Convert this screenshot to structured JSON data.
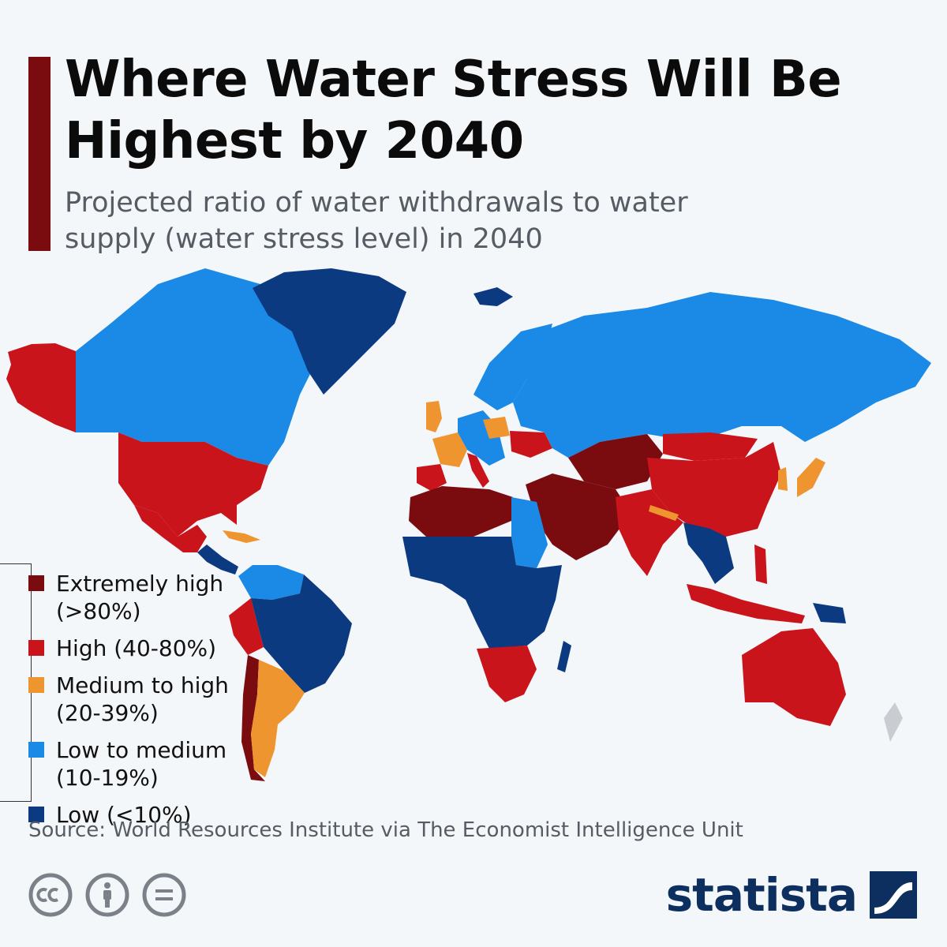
{
  "header": {
    "title": "Where Water Stress Will Be Highest by 2040",
    "subtitle": "Projected ratio of water withdrawals to water supply (water stress level) in 2040"
  },
  "legend": [
    {
      "label": "Extremely high (>80%)",
      "color": "#7a0c10"
    },
    {
      "label": "High (40-80%)",
      "color": "#c8141a"
    },
    {
      "label": "Medium to high (20-39%)",
      "color": "#ee9530"
    },
    {
      "label": "Low to medium (10-19%)",
      "color": "#1a8ae6"
    },
    {
      "label": "Low (<10%)",
      "color": "#0c3a80"
    }
  ],
  "colors": {
    "extremely_high": "#7a0c10",
    "high": "#c8141a",
    "medium_high": "#ee9530",
    "low_medium": "#1a8ae6",
    "low": "#0c3a80",
    "no_data": "#c9cdd2",
    "accent": "#7a0c10",
    "brand": "#0c2f5f"
  },
  "map_regions": [
    {
      "region": "Alaska",
      "level": "high"
    },
    {
      "region": "Canada",
      "level": "low_medium"
    },
    {
      "region": "Greenland",
      "level": "low"
    },
    {
      "region": "United States",
      "level": "high"
    },
    {
      "region": "Mexico",
      "level": "high"
    },
    {
      "region": "Central America",
      "level": "low"
    },
    {
      "region": "Cuba / Caribbean",
      "level": "medium_high"
    },
    {
      "region": "Colombia / Venezuela",
      "level": "low_medium"
    },
    {
      "region": "Brazil / Amazon",
      "level": "low"
    },
    {
      "region": "Peru",
      "level": "high"
    },
    {
      "region": "Chile",
      "level": "extremely_high"
    },
    {
      "region": "Argentina",
      "level": "medium_high"
    },
    {
      "region": "Iceland",
      "level": "low"
    },
    {
      "region": "Scandinavia",
      "level": "low_medium"
    },
    {
      "region": "United Kingdom",
      "level": "medium_high"
    },
    {
      "region": "France",
      "level": "medium_high"
    },
    {
      "region": "Iberia",
      "level": "high"
    },
    {
      "region": "Italy",
      "level": "high"
    },
    {
      "region": "Central Europe",
      "level": "low_medium"
    },
    {
      "region": "Poland",
      "level": "medium_high"
    },
    {
      "region": "Ukraine",
      "level": "high"
    },
    {
      "region": "Russia",
      "level": "low_medium"
    },
    {
      "region": "Kazakhstan / Central Asia",
      "level": "extremely_high"
    },
    {
      "region": "Middle East",
      "level": "extremely_high"
    },
    {
      "region": "North Africa",
      "level": "extremely_high"
    },
    {
      "region": "Egypt / Sudan",
      "level": "low_medium"
    },
    {
      "region": "Sub-Saharan Africa",
      "level": "low"
    },
    {
      "region": "Southern Africa",
      "level": "high"
    },
    {
      "region": "Madagascar",
      "level": "low"
    },
    {
      "region": "China",
      "level": "high"
    },
    {
      "region": "Mongolia",
      "level": "high"
    },
    {
      "region": "India",
      "level": "high"
    },
    {
      "region": "Nepal",
      "level": "medium_high"
    },
    {
      "region": "Korea",
      "level": "medium_high"
    },
    {
      "region": "Japan",
      "level": "medium_high"
    },
    {
      "region": "Southeast Asia",
      "level": "low"
    },
    {
      "region": "Philippines",
      "level": "high"
    },
    {
      "region": "Indonesia",
      "level": "high"
    },
    {
      "region": "Papua New Guinea",
      "level": "low"
    },
    {
      "region": "Australia",
      "level": "high"
    },
    {
      "region": "New Zealand",
      "level": "no_data"
    }
  ],
  "footer": {
    "source": "Source: World Resources Institute via The Economist Intelligence Unit",
    "brand": "statista"
  }
}
